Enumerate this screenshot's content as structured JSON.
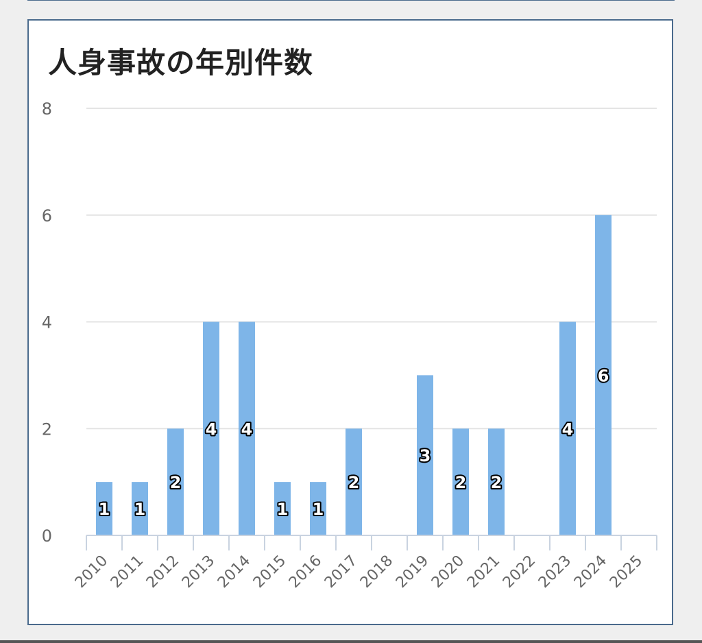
{
  "chart_data": {
    "type": "bar",
    "title": "人身事故の年別件数",
    "categories": [
      "2010",
      "2011",
      "2012",
      "2013",
      "2014",
      "2015",
      "2016",
      "2017",
      "2018",
      "2019",
      "2020",
      "2021",
      "2022",
      "2023",
      "2024",
      "2025"
    ],
    "values": [
      1,
      1,
      2,
      4,
      4,
      1,
      1,
      2,
      0,
      3,
      2,
      2,
      0,
      4,
      6,
      0
    ],
    "ylim": [
      0,
      8
    ],
    "yticks": [
      0,
      2,
      4,
      6,
      8
    ],
    "grid": true,
    "bar_color": "#7eb5e8",
    "data_labels": true
  }
}
